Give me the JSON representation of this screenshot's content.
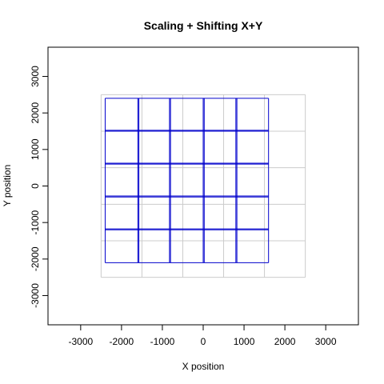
{
  "chart_data": {
    "type": "line",
    "title": "Scaling + Shifting X+Y",
    "xlabel": "X position",
    "ylabel": "Y position",
    "xlim": [
      -3800,
      3800
    ],
    "ylim": [
      -3800,
      3800
    ],
    "xticks": [
      -3000,
      -2000,
      -1000,
      0,
      1000,
      2000,
      3000
    ],
    "yticks": [
      -3000,
      -2000,
      -1000,
      0,
      1000,
      2000,
      3000
    ],
    "series": [
      {
        "role": "reference grid",
        "color": "#cccccc",
        "vertical_x": [
          -2500,
          -1500,
          -500,
          500,
          1500,
          2500
        ],
        "horizontal_y": [
          -2500,
          -1500,
          -500,
          500,
          1500,
          2500
        ],
        "extent": [
          -2500,
          2500
        ]
      },
      {
        "role": "transformed grid",
        "color": "#0000cc",
        "vertical_x": [
          -2400,
          -1600,
          -1575,
          -825,
          -800,
          0,
          25,
          800,
          825,
          1600
        ],
        "horizontal_y": [
          -2100,
          -1200,
          -1175,
          -300,
          -275,
          600,
          625,
          1500,
          1525,
          2400
        ],
        "x_extent": [
          -2400,
          1600
        ],
        "y_extent": [
          -2100,
          2400
        ]
      }
    ]
  }
}
